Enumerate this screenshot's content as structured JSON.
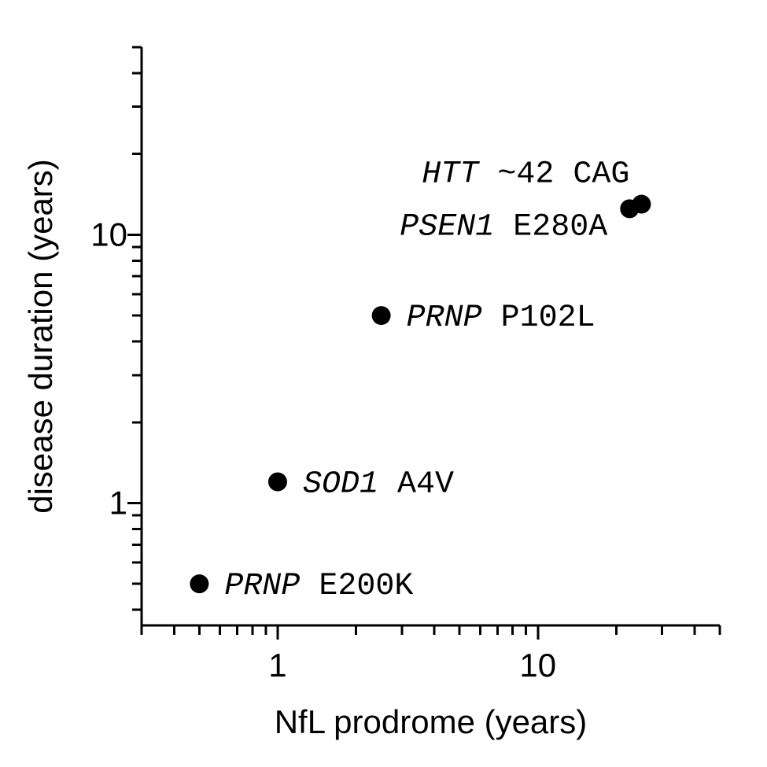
{
  "chart_data": {
    "type": "scatter",
    "title": "",
    "xlabel": "NfL prodrome (years)",
    "ylabel": "disease duration (years)",
    "x_scale": "log",
    "y_scale": "log",
    "xlim": [
      0.3,
      50
    ],
    "ylim": [
      0.35,
      50
    ],
    "x_tick_labels": [
      {
        "value": 1,
        "label": "1"
      },
      {
        "value": 10,
        "label": "10"
      }
    ],
    "y_tick_labels": [
      {
        "value": 1,
        "label": "1"
      },
      {
        "value": 10,
        "label": "10"
      }
    ],
    "grid": false,
    "legend": "none",
    "point_color": "#000000",
    "points": [
      {
        "gene": "PRNP",
        "variant": "E200K",
        "x": 0.5,
        "y": 0.5,
        "label_side": "right"
      },
      {
        "gene": "SOD1",
        "variant": "A4V",
        "x": 1.0,
        "y": 1.2,
        "label_side": "right"
      },
      {
        "gene": "PRNP",
        "variant": "P102L",
        "x": 2.5,
        "y": 5.0,
        "label_side": "right"
      },
      {
        "gene": "PSEN1",
        "variant": "E280A",
        "x": 22.5,
        "y": 12.5,
        "label_side": "left"
      },
      {
        "gene": "HTT",
        "variant": "~42 CAG",
        "x": 25.0,
        "y": 13.0,
        "label_side": "above"
      }
    ]
  }
}
